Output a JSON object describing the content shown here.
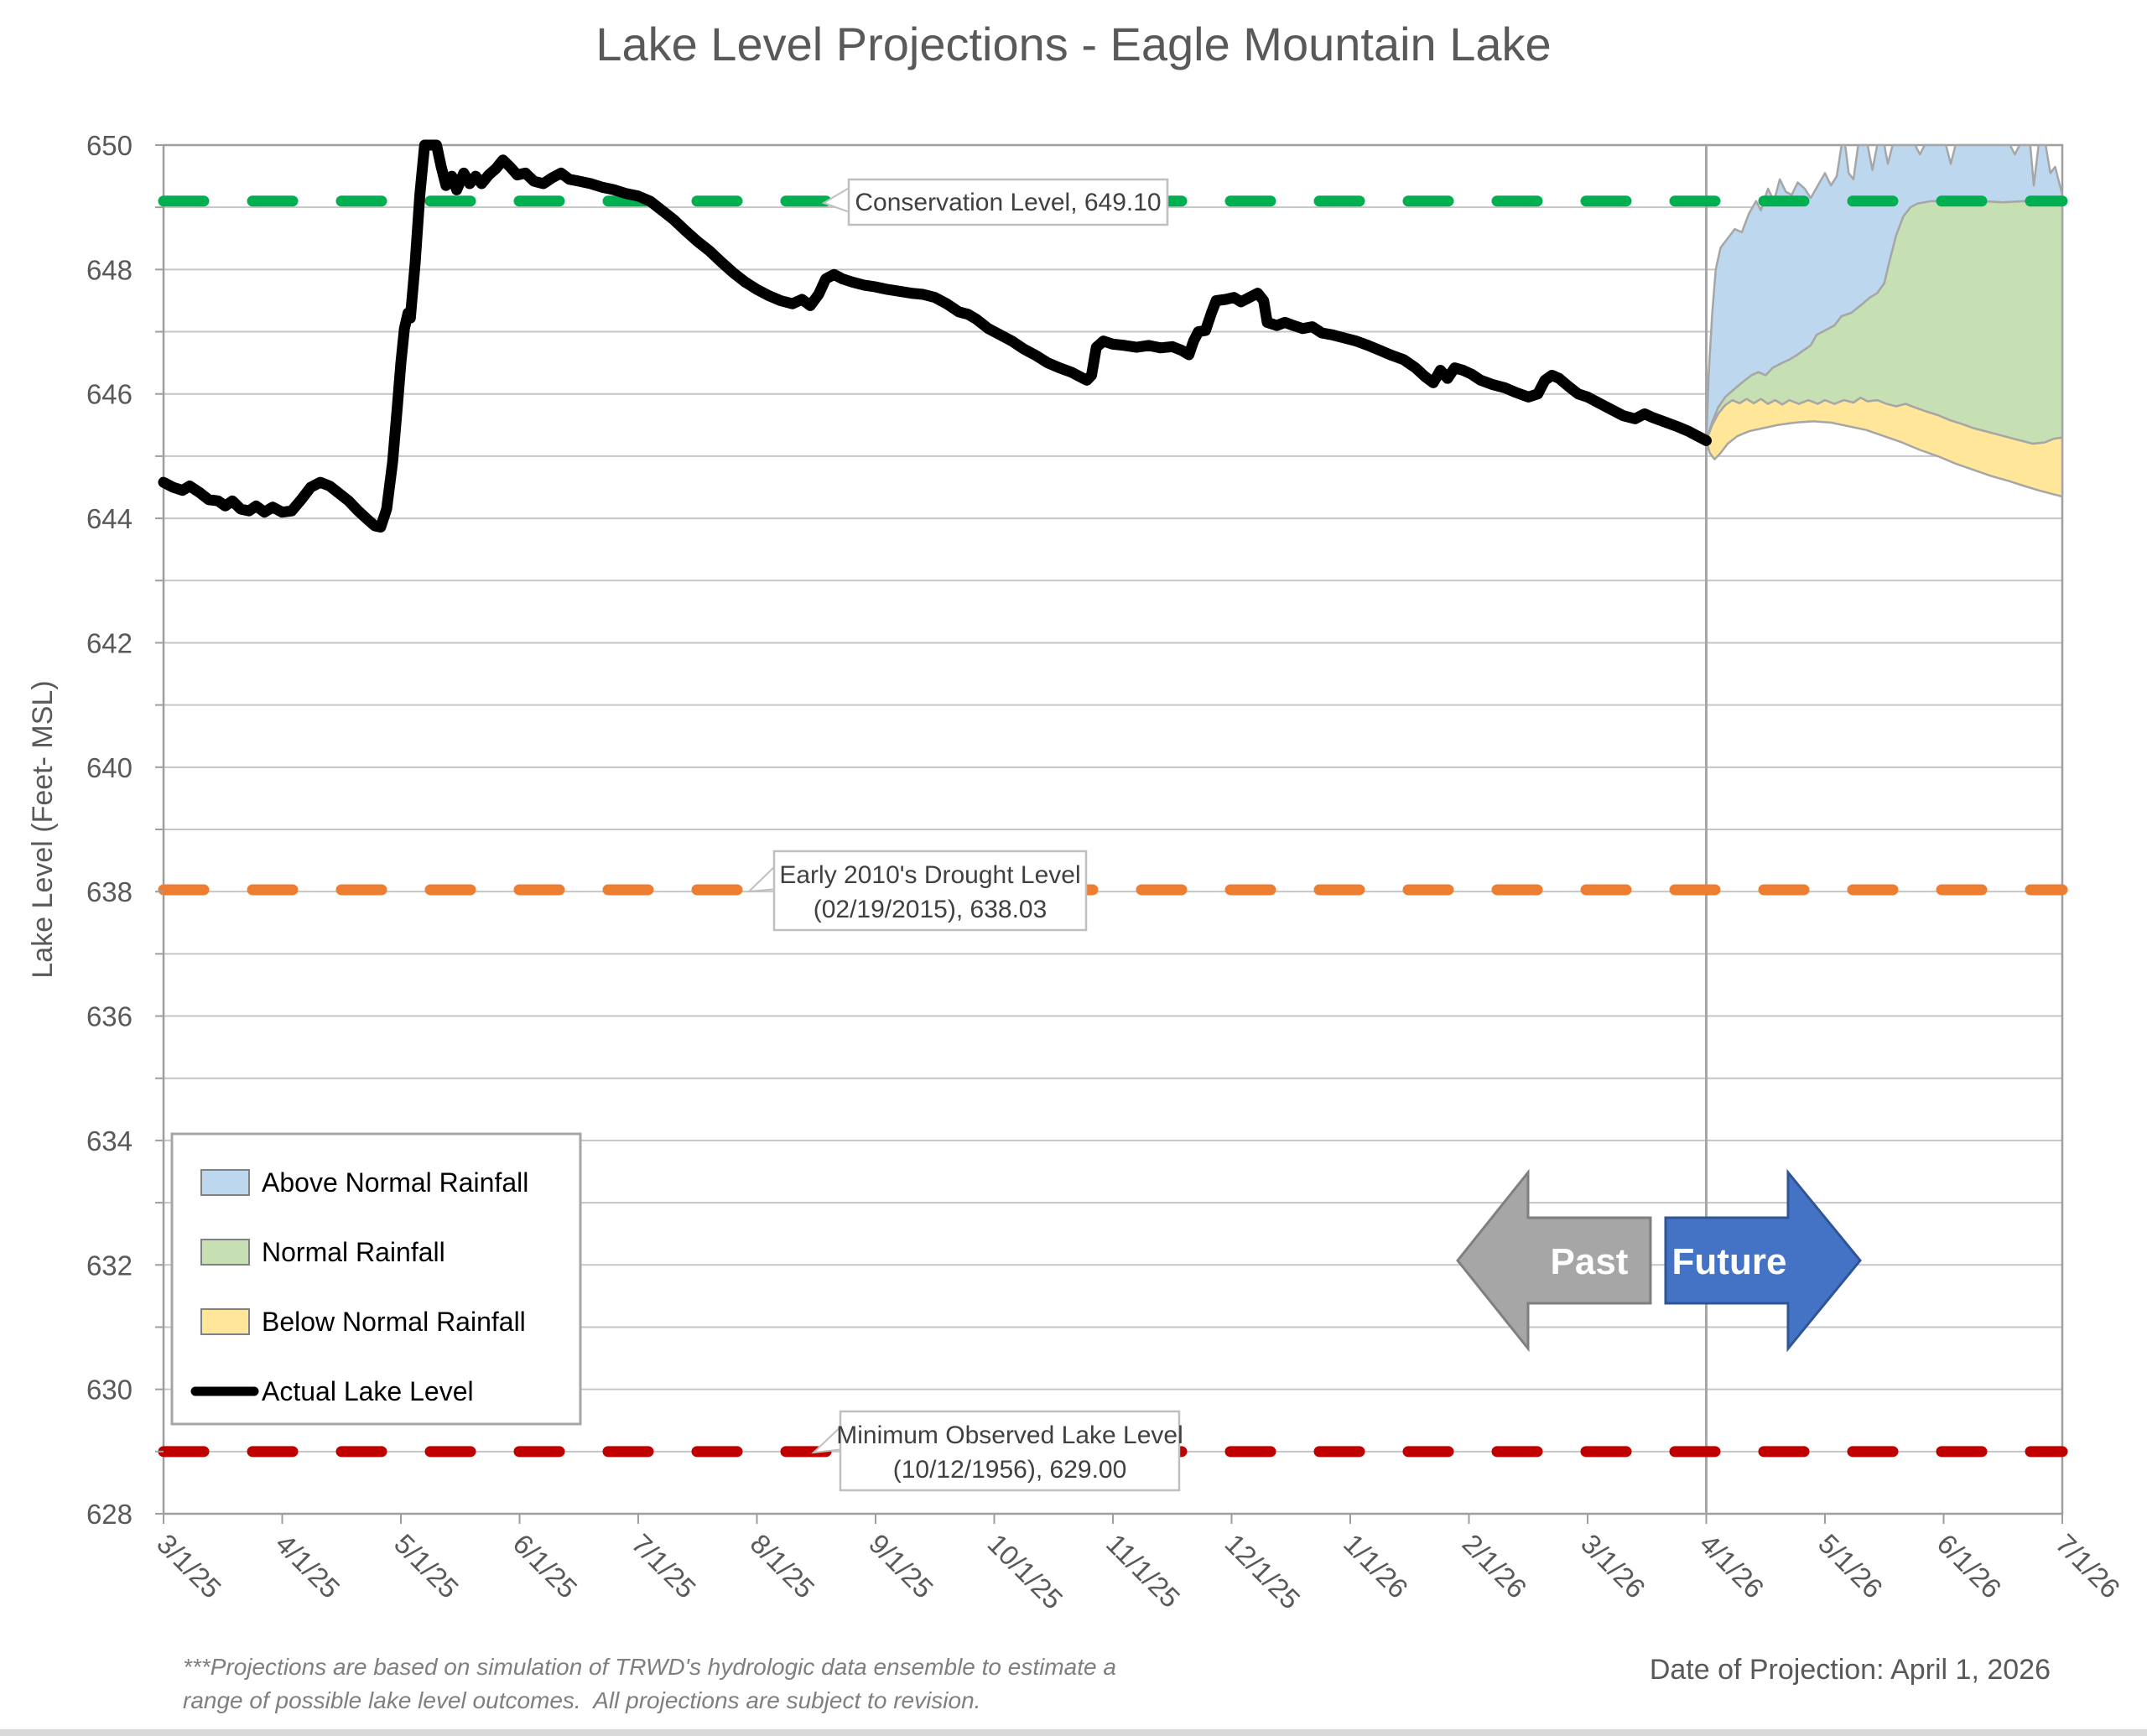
{
  "chart_data": {
    "type": "line",
    "title": "Lake Level Projections - Eagle Mountain Lake",
    "ylabel": "Lake Level (Feet- MSL)",
    "xlabel": "",
    "ylim": [
      628,
      650
    ],
    "y_label_step": 2,
    "y_grid_step": 1,
    "grid": true,
    "legend_position": "inside-left",
    "x_tick_labels": [
      "3/1/25",
      "4/1/25",
      "5/1/25",
      "6/1/25",
      "7/1/25",
      "8/1/25",
      "9/1/25",
      "10/1/25",
      "11/1/25",
      "12/1/25",
      "1/1/26",
      "2/1/26",
      "3/1/26",
      "4/1/26",
      "5/1/26",
      "6/1/26",
      "7/1/26"
    ],
    "x_unit": "months since 3/1/25",
    "divider_month": 13,
    "reference_lines": [
      {
        "id": "conservation-level",
        "value": 649.1,
        "color": "#00B050",
        "label": "Conservation Level, 649.10"
      },
      {
        "id": "drought-level",
        "value": 638.03,
        "color": "#ED7D31",
        "label_line1": "Early 2010's Drought Level",
        "label_line2": "(02/19/2015), 638.03"
      },
      {
        "id": "minimum-observed",
        "value": 629.0,
        "color": "#C00000",
        "label_line1": "Minimum Observed Lake Level",
        "label_line2": "(10/12/1956), 629.00"
      }
    ],
    "legend": [
      {
        "label": "Above Normal Rainfall",
        "color": "#BDD7EE",
        "type": "area"
      },
      {
        "label": "Normal Rainfall",
        "color": "#C6E0B4",
        "type": "area"
      },
      {
        "label": "Below Normal Rainfall",
        "color": "#FFE699",
        "type": "area"
      },
      {
        "label": "Actual Lake Level",
        "color": "#000000",
        "type": "line"
      }
    ],
    "annotations": {
      "past_label": "Past",
      "past_color": "#A6A6A6",
      "past_border": "#7F7F7F",
      "future_label": "Future",
      "future_color": "#4472C4",
      "future_border": "#2F5597"
    },
    "actual_series": {
      "name": "Actual Lake Level",
      "points": [
        [
          0,
          644.58
        ],
        [
          0.08,
          644.5
        ],
        [
          0.16,
          644.45
        ],
        [
          0.22,
          644.52
        ],
        [
          0.3,
          644.42
        ],
        [
          0.38,
          644.3
        ],
        [
          0.46,
          644.28
        ],
        [
          0.52,
          644.2
        ],
        [
          0.58,
          644.28
        ],
        [
          0.65,
          644.15
        ],
        [
          0.72,
          644.12
        ],
        [
          0.78,
          644.2
        ],
        [
          0.85,
          644.1
        ],
        [
          0.92,
          644.18
        ],
        [
          1.0,
          644.1
        ],
        [
          1.08,
          644.12
        ],
        [
          1.16,
          644.3
        ],
        [
          1.24,
          644.5
        ],
        [
          1.32,
          644.58
        ],
        [
          1.4,
          644.52
        ],
        [
          1.48,
          644.4
        ],
        [
          1.56,
          644.28
        ],
        [
          1.64,
          644.12
        ],
        [
          1.72,
          643.98
        ],
        [
          1.78,
          643.88
        ],
        [
          1.83,
          643.86
        ],
        [
          1.88,
          644.15
        ],
        [
          1.93,
          644.9
        ],
        [
          1.97,
          645.8
        ],
        [
          2.0,
          646.5
        ],
        [
          2.03,
          647.05
        ],
        [
          2.06,
          647.3
        ],
        [
          2.08,
          647.22
        ],
        [
          2.12,
          648.1
        ],
        [
          2.16,
          649.2
        ],
        [
          2.2,
          650.0
        ],
        [
          2.3,
          650.0
        ],
        [
          2.34,
          649.65
        ],
        [
          2.38,
          649.35
        ],
        [
          2.43,
          649.5
        ],
        [
          2.47,
          649.28
        ],
        [
          2.53,
          649.55
        ],
        [
          2.58,
          649.38
        ],
        [
          2.63,
          649.5
        ],
        [
          2.68,
          649.38
        ],
        [
          2.74,
          649.52
        ],
        [
          2.8,
          649.62
        ],
        [
          2.86,
          649.76
        ],
        [
          2.92,
          649.65
        ],
        [
          2.98,
          649.52
        ],
        [
          3.05,
          649.55
        ],
        [
          3.12,
          649.42
        ],
        [
          3.2,
          649.38
        ],
        [
          3.28,
          649.48
        ],
        [
          3.35,
          649.55
        ],
        [
          3.42,
          649.45
        ],
        [
          3.5,
          649.42
        ],
        [
          3.6,
          649.38
        ],
        [
          3.7,
          649.32
        ],
        [
          3.8,
          649.28
        ],
        [
          3.9,
          649.22
        ],
        [
          4.0,
          649.18
        ],
        [
          4.1,
          649.1
        ],
        [
          4.2,
          648.95
        ],
        [
          4.3,
          648.8
        ],
        [
          4.4,
          648.62
        ],
        [
          4.5,
          648.45
        ],
        [
          4.6,
          648.3
        ],
        [
          4.7,
          648.12
        ],
        [
          4.8,
          647.95
        ],
        [
          4.9,
          647.8
        ],
        [
          5.0,
          647.68
        ],
        [
          5.1,
          647.58
        ],
        [
          5.2,
          647.5
        ],
        [
          5.3,
          647.45
        ],
        [
          5.38,
          647.52
        ],
        [
          5.45,
          647.42
        ],
        [
          5.52,
          647.6
        ],
        [
          5.58,
          647.85
        ],
        [
          5.65,
          647.92
        ],
        [
          5.72,
          647.85
        ],
        [
          5.8,
          647.8
        ],
        [
          5.9,
          647.75
        ],
        [
          6.0,
          647.72
        ],
        [
          6.1,
          647.68
        ],
        [
          6.2,
          647.65
        ],
        [
          6.3,
          647.62
        ],
        [
          6.4,
          647.6
        ],
        [
          6.5,
          647.55
        ],
        [
          6.6,
          647.45
        ],
        [
          6.7,
          647.32
        ],
        [
          6.78,
          647.28
        ],
        [
          6.85,
          647.2
        ],
        [
          6.95,
          647.05
        ],
        [
          7.05,
          646.95
        ],
        [
          7.15,
          646.85
        ],
        [
          7.25,
          646.72
        ],
        [
          7.35,
          646.62
        ],
        [
          7.45,
          646.5
        ],
        [
          7.55,
          646.42
        ],
        [
          7.65,
          646.35
        ],
        [
          7.72,
          646.28
        ],
        [
          7.78,
          646.22
        ],
        [
          7.82,
          646.3
        ],
        [
          7.86,
          646.75
        ],
        [
          7.92,
          646.85
        ],
        [
          8.0,
          646.8
        ],
        [
          8.1,
          646.78
        ],
        [
          8.2,
          646.75
        ],
        [
          8.3,
          646.78
        ],
        [
          8.4,
          646.74
        ],
        [
          8.5,
          646.76
        ],
        [
          8.58,
          646.7
        ],
        [
          8.64,
          646.63
        ],
        [
          8.68,
          646.85
        ],
        [
          8.72,
          647.0
        ],
        [
          8.78,
          647.02
        ],
        [
          8.83,
          647.3
        ],
        [
          8.87,
          647.5
        ],
        [
          8.95,
          647.52
        ],
        [
          9.02,
          647.55
        ],
        [
          9.08,
          647.48
        ],
        [
          9.15,
          647.55
        ],
        [
          9.22,
          647.62
        ],
        [
          9.27,
          647.5
        ],
        [
          9.3,
          647.15
        ],
        [
          9.38,
          647.1
        ],
        [
          9.45,
          647.15
        ],
        [
          9.52,
          647.1
        ],
        [
          9.6,
          647.05
        ],
        [
          9.68,
          647.08
        ],
        [
          9.76,
          646.98
        ],
        [
          9.85,
          646.95
        ],
        [
          9.95,
          646.9
        ],
        [
          10.05,
          646.85
        ],
        [
          10.15,
          646.78
        ],
        [
          10.25,
          646.7
        ],
        [
          10.35,
          646.62
        ],
        [
          10.45,
          646.55
        ],
        [
          10.55,
          646.42
        ],
        [
          10.63,
          646.28
        ],
        [
          10.7,
          646.18
        ],
        [
          10.76,
          646.38
        ],
        [
          10.82,
          646.25
        ],
        [
          10.88,
          646.42
        ],
        [
          10.95,
          646.38
        ],
        [
          11.02,
          646.32
        ],
        [
          11.1,
          646.22
        ],
        [
          11.2,
          646.15
        ],
        [
          11.3,
          646.1
        ],
        [
          11.4,
          646.02
        ],
        [
          11.5,
          645.95
        ],
        [
          11.58,
          646.0
        ],
        [
          11.64,
          646.22
        ],
        [
          11.7,
          646.3
        ],
        [
          11.76,
          646.25
        ],
        [
          11.84,
          646.12
        ],
        [
          11.92,
          646.0
        ],
        [
          12.0,
          645.95
        ],
        [
          12.1,
          645.85
        ],
        [
          12.2,
          645.75
        ],
        [
          12.3,
          645.65
        ],
        [
          12.4,
          645.6
        ],
        [
          12.48,
          645.68
        ],
        [
          12.55,
          645.62
        ],
        [
          12.65,
          645.55
        ],
        [
          12.75,
          645.48
        ],
        [
          12.85,
          645.4
        ],
        [
          12.93,
          645.32
        ],
        [
          13.0,
          645.25
        ]
      ]
    },
    "projection_bands": {
      "start_month": 13,
      "above_upper": [
        [
          13,
          645.25
        ],
        [
          13.02,
          646.3
        ],
        [
          13.05,
          647.3
        ],
        [
          13.08,
          648.0
        ],
        [
          13.12,
          648.35
        ],
        [
          13.18,
          648.5
        ],
        [
          13.24,
          648.65
        ],
        [
          13.3,
          648.6
        ],
        [
          13.36,
          648.9
        ],
        [
          13.42,
          649.1
        ],
        [
          13.46,
          648.95
        ],
        [
          13.52,
          649.3
        ],
        [
          13.57,
          649.1
        ],
        [
          13.62,
          649.45
        ],
        [
          13.67,
          649.25
        ],
        [
          13.72,
          649.2
        ],
        [
          13.77,
          649.4
        ],
        [
          13.83,
          649.3
        ],
        [
          13.88,
          649.15
        ],
        [
          13.94,
          649.35
        ],
        [
          14.0,
          649.55
        ],
        [
          14.05,
          649.35
        ],
        [
          14.1,
          649.5
        ],
        [
          14.14,
          650.0
        ],
        [
          14.17,
          650.0
        ],
        [
          14.2,
          649.55
        ],
        [
          14.24,
          649.45
        ],
        [
          14.28,
          650.0
        ],
        [
          14.36,
          650.0
        ],
        [
          14.4,
          649.6
        ],
        [
          14.44,
          650.0
        ],
        [
          14.5,
          650.0
        ],
        [
          14.53,
          649.7
        ],
        [
          14.57,
          650.0
        ],
        [
          14.76,
          650.0
        ],
        [
          14.8,
          649.85
        ],
        [
          14.84,
          650.0
        ],
        [
          15.02,
          650.0
        ],
        [
          15.06,
          649.7
        ],
        [
          15.1,
          650.0
        ],
        [
          15.56,
          650.0
        ],
        [
          15.6,
          649.85
        ],
        [
          15.64,
          650.0
        ],
        [
          15.73,
          650.0
        ],
        [
          15.76,
          649.35
        ],
        [
          15.8,
          650.0
        ],
        [
          15.86,
          650.0
        ],
        [
          15.9,
          649.55
        ],
        [
          15.94,
          649.65
        ],
        [
          16,
          649.2
        ]
      ],
      "normal_upper": [
        [
          13,
          645.25
        ],
        [
          13.05,
          645.55
        ],
        [
          13.1,
          645.78
        ],
        [
          13.16,
          645.95
        ],
        [
          13.22,
          646.05
        ],
        [
          13.3,
          646.18
        ],
        [
          13.38,
          646.3
        ],
        [
          13.44,
          646.35
        ],
        [
          13.5,
          646.3
        ],
        [
          13.56,
          646.42
        ],
        [
          13.64,
          646.5
        ],
        [
          13.7,
          646.55
        ],
        [
          13.76,
          646.62
        ],
        [
          13.82,
          646.7
        ],
        [
          13.88,
          646.78
        ],
        [
          13.93,
          646.95
        ],
        [
          14.0,
          647.02
        ],
        [
          14.08,
          647.1
        ],
        [
          14.14,
          647.25
        ],
        [
          14.22,
          647.3
        ],
        [
          14.3,
          647.42
        ],
        [
          14.38,
          647.55
        ],
        [
          14.44,
          647.62
        ],
        [
          14.5,
          647.78
        ],
        [
          14.54,
          648.1
        ],
        [
          14.6,
          648.55
        ],
        [
          14.66,
          648.85
        ],
        [
          14.72,
          649.0
        ],
        [
          14.78,
          649.06
        ],
        [
          14.9,
          649.1
        ],
        [
          15.1,
          649.08
        ],
        [
          15.3,
          649.1
        ],
        [
          15.5,
          649.08
        ],
        [
          15.7,
          649.1
        ],
        [
          15.85,
          649.08
        ],
        [
          16,
          649.05
        ]
      ],
      "below_upper": [
        [
          13,
          645.25
        ],
        [
          13.05,
          645.5
        ],
        [
          13.1,
          645.68
        ],
        [
          13.16,
          645.82
        ],
        [
          13.22,
          645.9
        ],
        [
          13.28,
          645.85
        ],
        [
          13.34,
          645.92
        ],
        [
          13.4,
          645.85
        ],
        [
          13.46,
          645.92
        ],
        [
          13.52,
          645.84
        ],
        [
          13.58,
          645.9
        ],
        [
          13.64,
          645.83
        ],
        [
          13.7,
          645.9
        ],
        [
          13.78,
          645.84
        ],
        [
          13.86,
          645.9
        ],
        [
          13.94,
          645.84
        ],
        [
          14.0,
          645.9
        ],
        [
          14.08,
          645.84
        ],
        [
          14.16,
          645.9
        ],
        [
          14.24,
          645.86
        ],
        [
          14.3,
          645.94
        ],
        [
          14.36,
          645.88
        ],
        [
          14.44,
          645.9
        ],
        [
          14.52,
          645.84
        ],
        [
          14.6,
          645.8
        ],
        [
          14.68,
          645.84
        ],
        [
          14.76,
          645.78
        ],
        [
          14.85,
          645.72
        ],
        [
          14.95,
          645.66
        ],
        [
          15.05,
          645.58
        ],
        [
          15.15,
          645.52
        ],
        [
          15.25,
          645.45
        ],
        [
          15.35,
          645.4
        ],
        [
          15.45,
          645.35
        ],
        [
          15.55,
          645.3
        ],
        [
          15.65,
          645.25
        ],
        [
          15.75,
          645.2
        ],
        [
          15.85,
          645.22
        ],
        [
          15.93,
          645.28
        ],
        [
          16,
          645.3
        ]
      ],
      "below_lower": [
        [
          13,
          645.25
        ],
        [
          13.03,
          645.05
        ],
        [
          13.07,
          644.95
        ],
        [
          13.12,
          645.05
        ],
        [
          13.18,
          645.2
        ],
        [
          13.26,
          645.32
        ],
        [
          13.36,
          645.4
        ],
        [
          13.48,
          645.45
        ],
        [
          13.6,
          645.5
        ],
        [
          13.75,
          645.54
        ],
        [
          13.9,
          645.56
        ],
        [
          14.05,
          645.54
        ],
        [
          14.2,
          645.48
        ],
        [
          14.35,
          645.42
        ],
        [
          14.5,
          645.32
        ],
        [
          14.65,
          645.22
        ],
        [
          14.8,
          645.1
        ],
        [
          14.95,
          645.0
        ],
        [
          15.1,
          644.88
        ],
        [
          15.25,
          644.78
        ],
        [
          15.4,
          644.68
        ],
        [
          15.55,
          644.6
        ],
        [
          15.68,
          644.52
        ],
        [
          15.8,
          644.45
        ],
        [
          15.9,
          644.4
        ],
        [
          16,
          644.35
        ]
      ]
    },
    "footnote_line1": "***Projections are based on simulation of TRWD's hydrologic data ensemble to estimate a",
    "footnote_line2": "range of possible lake level outcomes.  All projections are subject to revision.",
    "projection_date_label": "Date of Projection: April 1, 2026"
  }
}
